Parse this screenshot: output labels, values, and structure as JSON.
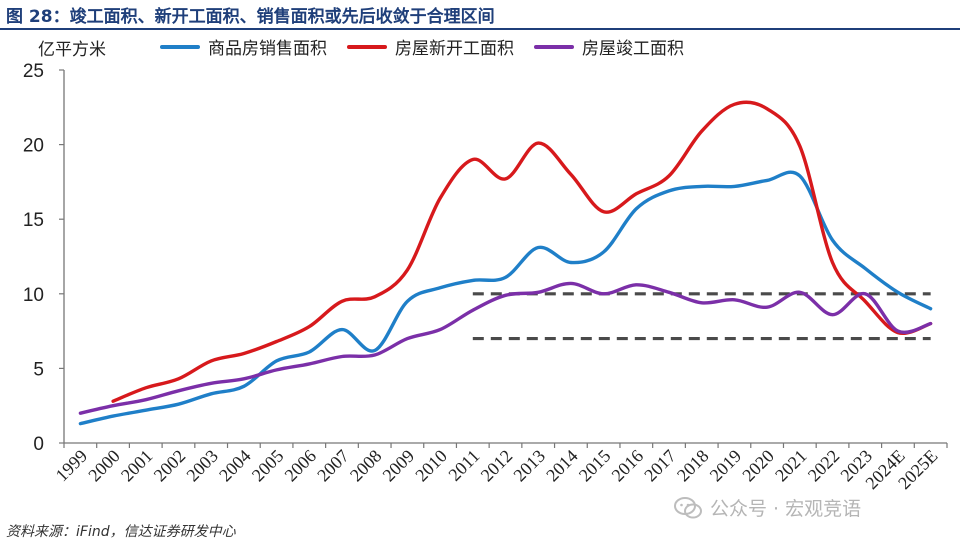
{
  "header": {
    "title": "图 28：竣工面积、新开工面积、销售面积或先后收敛于合理区间"
  },
  "footer": {
    "source": "资料来源：iFind，信达证券研发中心",
    "watermark": "公众号 · 宏观竞语"
  },
  "colors": {
    "title": "#1f3f7a",
    "sales": "#1f7fc8",
    "new_starts": "#d7191c",
    "completed": "#7b2fa8",
    "reference": "#4a4a4a"
  },
  "chart_data": {
    "type": "line",
    "title": "竣工面积、新开工面积、销售面积或先后收敛于合理区间",
    "ylabel": "亿平方米",
    "xlabel": "",
    "ylim": [
      0,
      25
    ],
    "yticks": [
      "0",
      "5",
      "10",
      "15",
      "20",
      "25"
    ],
    "categories": [
      "1999",
      "2000",
      "2001",
      "2002",
      "2003",
      "2004",
      "2005",
      "2006",
      "2007",
      "2008",
      "2009",
      "2010",
      "2011",
      "2012",
      "2013",
      "2014",
      "2015",
      "2016",
      "2017",
      "2018",
      "2019",
      "2020",
      "2021",
      "2022",
      "2023",
      "2024E",
      "2025E"
    ],
    "legend_position": "top",
    "grid": false,
    "series": [
      {
        "name": "商品房销售面积",
        "color": "#1f7fc8",
        "values": [
          1.3,
          1.8,
          2.2,
          2.6,
          3.3,
          3.8,
          5.5,
          6.1,
          7.6,
          6.2,
          9.5,
          10.4,
          10.9,
          11.1,
          13.1,
          12.1,
          12.8,
          15.7,
          16.9,
          17.2,
          17.2,
          17.6,
          17.9,
          13.6,
          11.7,
          10.1,
          9.0
        ]
      },
      {
        "name": "房屋新开工面积",
        "color": "#d7191c",
        "values": [
          null,
          2.8,
          3.7,
          4.3,
          5.5,
          6.0,
          6.8,
          7.8,
          9.5,
          9.8,
          11.6,
          16.4,
          19.0,
          17.7,
          20.1,
          18.0,
          15.5,
          16.7,
          17.9,
          20.9,
          22.7,
          22.4,
          19.9,
          12.1,
          9.5,
          7.4,
          8.0
        ]
      },
      {
        "name": "房屋竣工面积",
        "color": "#7b2fa8",
        "values": [
          2.0,
          2.5,
          2.9,
          3.5,
          4.0,
          4.3,
          4.9,
          5.3,
          5.8,
          5.9,
          7.0,
          7.6,
          8.9,
          9.9,
          10.1,
          10.7,
          10.0,
          10.6,
          10.1,
          9.4,
          9.6,
          9.1,
          10.1,
          8.6,
          10.0,
          7.5,
          8.0
        ]
      }
    ],
    "reference_lines": [
      {
        "y": 10,
        "from": "2011",
        "to": "2025E",
        "style": "dashed",
        "color": "#4a4a4a"
      },
      {
        "y": 7,
        "from": "2011",
        "to": "2025E",
        "style": "dashed",
        "color": "#4a4a4a"
      }
    ]
  }
}
